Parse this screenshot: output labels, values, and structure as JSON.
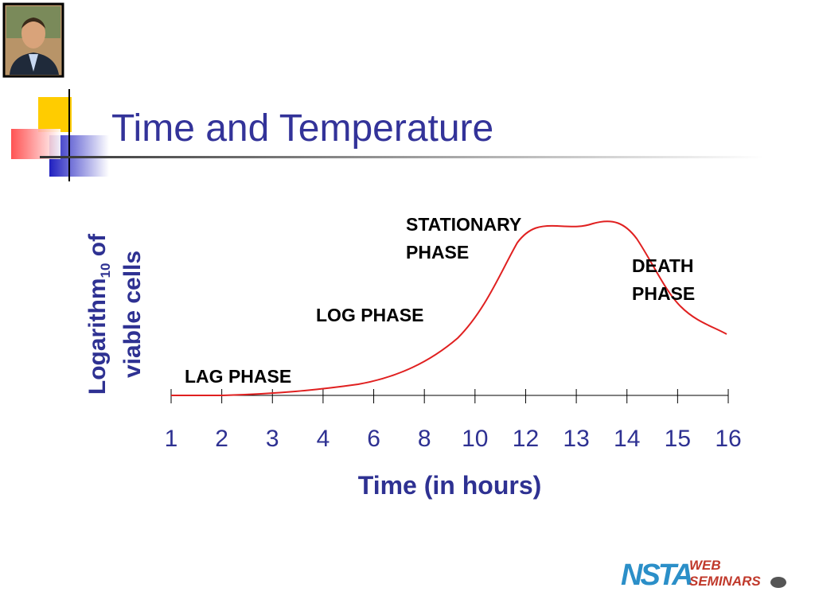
{
  "title": "Time and Temperature",
  "y_label": {
    "line1": "Logarithm",
    "subscript": "10",
    "line1_end": " of",
    "line2": "viable cells"
  },
  "x_label": "Time (in hours)",
  "x_tick_labels": [
    "1",
    "2",
    "3",
    "4",
    "6",
    "8",
    "10",
    "12",
    "13",
    "14",
    "15",
    "16"
  ],
  "phases": {
    "lag": "LAG PHASE",
    "log": "LOG PHASE",
    "stationary": [
      "STATIONARY",
      "PHASE"
    ],
    "death": [
      "DEATH",
      "PHASE"
    ]
  },
  "logo": {
    "org": "NSTA",
    "line1": "WEB",
    "line2": "SEMINARS"
  }
}
